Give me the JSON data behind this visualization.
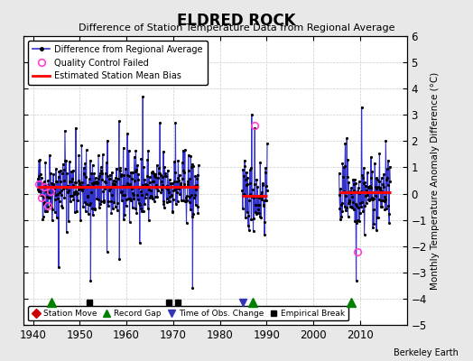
{
  "title": "ELDRED ROCK",
  "subtitle": "Difference of Station Temperature Data from Regional Average",
  "ylabel_right": "Monthly Temperature Anomaly Difference (°C)",
  "credit": "Berkeley Earth",
  "xlim": [
    1938,
    2020
  ],
  "ylim": [
    -5,
    6
  ],
  "yticks": [
    -5,
    -4,
    -3,
    -2,
    -1,
    0,
    1,
    2,
    3,
    4,
    5,
    6
  ],
  "xticks": [
    1940,
    1950,
    1960,
    1970,
    1980,
    1990,
    2000,
    2010
  ],
  "background_color": "#e8e8e8",
  "plot_bg_color": "#ffffff",
  "main_line_color": "#3333cc",
  "bias_line_color": "#ff0000",
  "qc_color": "#ff44cc",
  "grid_color": "#cccccc",
  "segments": [
    {
      "x_start": 1941.0,
      "x_end": 1975.5,
      "bias": 0.25
    },
    {
      "x_start": 1984.8,
      "x_end": 1990.2,
      "bias": -0.08
    },
    {
      "x_start": 2005.5,
      "x_end": 2016.5,
      "bias": 0.05
    }
  ],
  "record_gaps": [
    1944,
    1987,
    2008
  ],
  "empirical_breaks": [
    1952,
    1969,
    1971
  ],
  "time_of_obs_changes": [
    1985
  ],
  "station_moves": [],
  "qc_points_1": [
    [
      1941.3,
      0.35
    ],
    [
      1941.9,
      -0.15
    ],
    [
      1942.5,
      0.25
    ],
    [
      1943.1,
      -0.45
    ],
    [
      1943.8,
      0.1
    ]
  ],
  "qc_points_2": [
    [
      1987.5,
      2.6
    ]
  ],
  "qc_points_3": [
    [
      2009.5,
      -2.2
    ]
  ],
  "seed": 42
}
